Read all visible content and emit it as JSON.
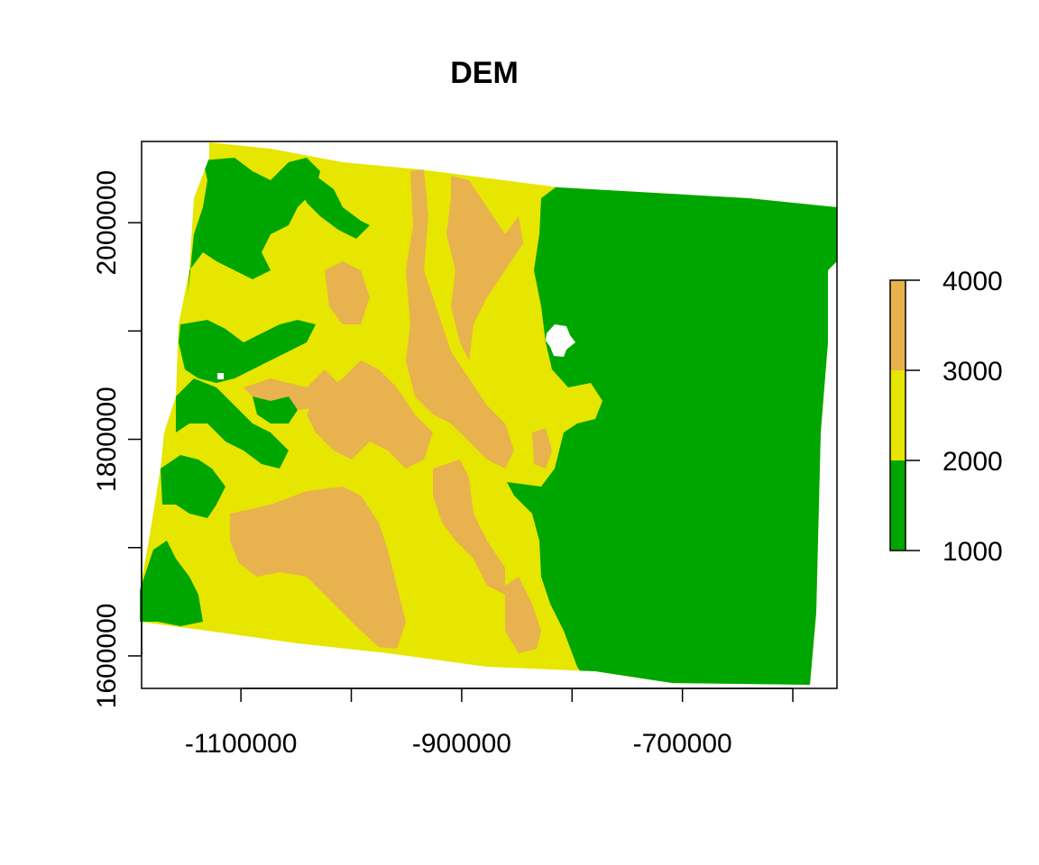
{
  "chart_data": {
    "type": "raster-map",
    "title": "DEM",
    "xlabel": "",
    "ylabel": "",
    "xlim": [
      -1190000,
      -560000
    ],
    "ylim": [
      1570000,
      2075000
    ],
    "x_ticks": [
      -1100000,
      -1000000,
      -900000,
      -800000,
      -700000,
      -600000
    ],
    "x_tick_labels": [
      "-1100000",
      "-900000",
      "-700000"
    ],
    "x_tick_label_values": [
      -1100000,
      -900000,
      -700000
    ],
    "y_ticks": [
      1600000,
      1700000,
      1800000,
      1900000,
      2000000
    ],
    "y_tick_labels": [
      "1600000",
      "1800000",
      "2000000"
    ],
    "y_tick_label_values": [
      1600000,
      1800000,
      2000000
    ],
    "legend": {
      "placement": "right",
      "breaks": [
        1000,
        2000,
        3000,
        4000
      ],
      "labels": [
        "1000",
        "2000",
        "3000",
        "4000"
      ],
      "colors": [
        "#00A600",
        "#E6E600",
        "#E8B24E"
      ]
    },
    "classes": [
      {
        "range": [
          1000,
          2000
        ],
        "color": "#00A600"
      },
      {
        "range": [
          2000,
          3000
        ],
        "color": "#E6E600"
      },
      {
        "range": [
          3000,
          4000
        ],
        "color": "#E8B24E"
      }
    ],
    "nodata_color": "#FFFFFF"
  }
}
